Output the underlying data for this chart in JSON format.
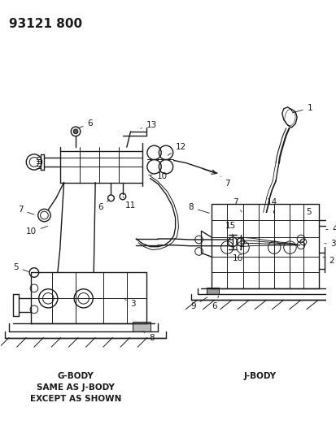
{
  "title": "93121 800",
  "background_color": "#ffffff",
  "line_color": "#1a1a1a",
  "label_g_body": "G-BODY\nSAME AS J-BODY\nEXCEPT AS SHOWN",
  "label_j_body": "J-BODY",
  "fig_width": 4.14,
  "fig_height": 5.33,
  "title_fontsize": 11,
  "label_fontsize": 7,
  "part_fontsize": 7.5
}
